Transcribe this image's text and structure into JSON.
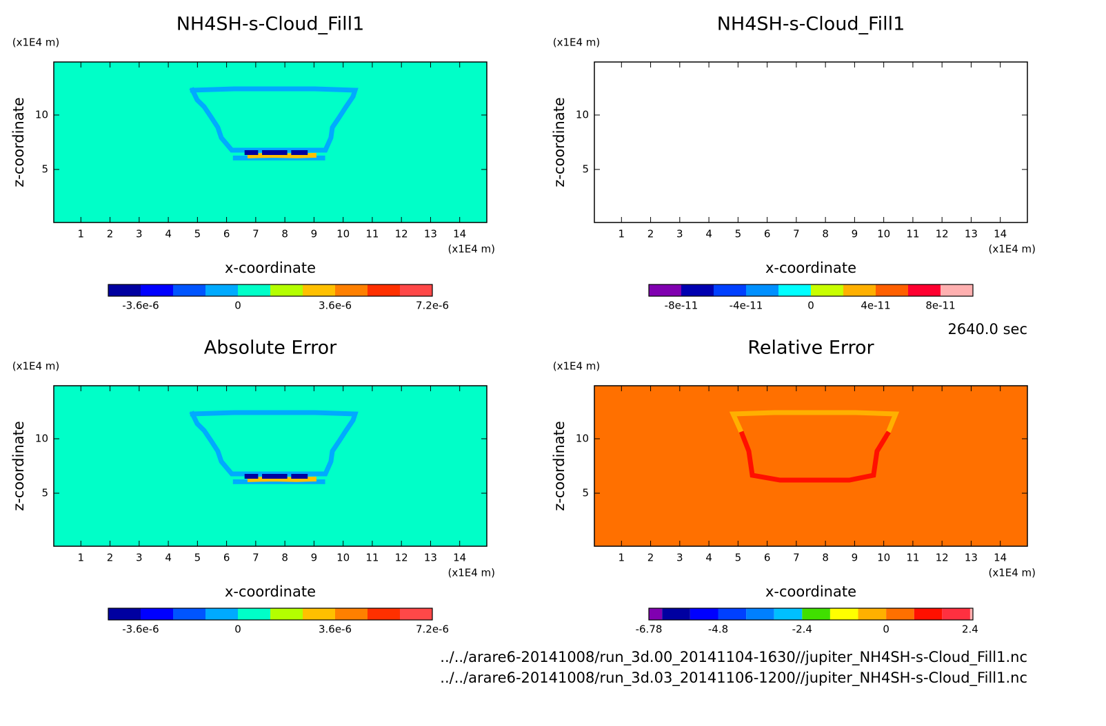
{
  "chart_data": [
    {
      "type": "contour",
      "title": "NH4SH-s-Cloud_Fill1",
      "xlabel": "x-coordinate",
      "ylabel": "z-coordinate",
      "xunit": "(x1E4 m)",
      "yunit": "(x1E4 m)",
      "xlim": [
        0.07,
        14.93
      ],
      "ylim": [
        0.13,
        14.87
      ],
      "xticks": [
        1,
        2,
        3,
        4,
        5,
        6,
        7,
        8,
        9,
        10,
        11,
        12,
        13,
        14
      ],
      "yticks": [
        5,
        10
      ],
      "background": 6e-07,
      "features": [
        {
          "x": [
            4.83,
            6.25,
            9.03,
            10.41,
            10.34,
            10.1,
            9.87,
            9.63,
            9.58,
            9.39,
            6.18,
            5.82,
            5.7,
            5.47,
            5.23,
            4.99,
            4.83
          ],
          "z": [
            12.28,
            12.4,
            12.4,
            12.28,
            11.7,
            10.76,
            9.81,
            8.86,
            7.91,
            6.77,
            6.77,
            7.91,
            8.86,
            9.81,
            10.76,
            11.39,
            12.28
          ],
          "value": -6e-07
        },
        {
          "x": [
            6.3,
            9.3
          ],
          "z": [
            6.05,
            6.05
          ],
          "value": -6e-07
        },
        {
          "x": [
            6.8,
            7.6,
            8.4,
            9.0
          ],
          "z": [
            6.25,
            6.3,
            6.25,
            6.3
          ],
          "value": 3e-06
        },
        {
          "x": [
            6.7,
            7.0
          ],
          "z": [
            6.55,
            6.55
          ],
          "value": -4.2e-06
        },
        {
          "x": [
            7.3,
            8.0
          ],
          "z": [
            6.55,
            6.55
          ],
          "value": -4.2e-06
        },
        {
          "x": [
            8.3,
            8.7
          ],
          "z": [
            6.55,
            6.55
          ],
          "value": -4.2e-06
        }
      ],
      "colorbar": {
        "levels": [
          -4.8e-06,
          -3.6e-06,
          -2.4e-06,
          -1.2e-06,
          0,
          1.2e-06,
          2.4e-06,
          3.6e-06,
          4.8e-06,
          6e-06,
          7.2e-06
        ],
        "colors": [
          "#0000a0",
          "#0000ff",
          "#0055ff",
          "#00aaff",
          "#00ffc8",
          "#b4ff00",
          "#ffc000",
          "#ff8000",
          "#ff3000",
          "#ff4848"
        ],
        "ticks": [
          {
            "value": -3.6e-06,
            "label": "-3.6e-6"
          },
          0,
          {
            "value": 3.6e-06,
            "label": "3.6e-6"
          },
          {
            "value": 7.2e-06,
            "label": "7.2e-6"
          }
        ]
      }
    },
    {
      "type": "contour",
      "title": "NH4SH-s-Cloud_Fill1",
      "xlabel": "x-coordinate",
      "ylabel": "z-coordinate",
      "xunit": "(x1E4 m)",
      "yunit": "(x1E4 m)",
      "xlim": [
        0.07,
        14.93
      ],
      "ylim": [
        0.13,
        14.87
      ],
      "xticks": [
        1,
        2,
        3,
        4,
        5,
        6,
        7,
        8,
        9,
        10,
        11,
        12,
        13,
        14
      ],
      "yticks": [
        5,
        10
      ],
      "background": null,
      "features": [],
      "colorbar": {
        "levels": [
          -1e-10,
          -8e-11,
          -6e-11,
          -4e-11,
          -2e-11,
          0,
          2e-11,
          4e-11,
          6e-11,
          8e-11,
          1e-10
        ],
        "colors": [
          "#8000b0",
          "#0000b0",
          "#0040ff",
          "#0090ff",
          "#00ffff",
          "#c8ff00",
          "#ffb000",
          "#ff6000",
          "#ff0030",
          "#ffb0b0"
        ],
        "ticks": [
          {
            "value": -8e-11,
            "label": "-8e-11"
          },
          {
            "value": -4e-11,
            "label": "-4e-11"
          },
          0,
          {
            "value": 4e-11,
            "label": "4e-11"
          },
          {
            "value": 8e-11,
            "label": "8e-11"
          }
        ]
      }
    },
    {
      "type": "contour",
      "title": "Absolute Error",
      "xlabel": "x-coordinate",
      "ylabel": "z-coordinate",
      "xunit": "(x1E4 m)",
      "yunit": "(x1E4 m)",
      "xlim": [
        0.07,
        14.93
      ],
      "ylim": [
        0.13,
        14.87
      ],
      "xticks": [
        1,
        2,
        3,
        4,
        5,
        6,
        7,
        8,
        9,
        10,
        11,
        12,
        13,
        14
      ],
      "yticks": [
        5,
        10
      ],
      "background": 6e-07,
      "features": [
        {
          "x": [
            4.83,
            6.25,
            9.03,
            10.41,
            10.34,
            10.1,
            9.87,
            9.63,
            9.58,
            9.39,
            6.18,
            5.82,
            5.7,
            5.47,
            5.23,
            4.99,
            4.83
          ],
          "z": [
            12.28,
            12.4,
            12.4,
            12.28,
            11.7,
            10.76,
            9.81,
            8.86,
            7.91,
            6.77,
            6.77,
            7.91,
            8.86,
            9.81,
            10.76,
            11.39,
            12.28
          ],
          "value": -6e-07
        },
        {
          "x": [
            6.3,
            9.3
          ],
          "z": [
            6.05,
            6.05
          ],
          "value": -6e-07
        },
        {
          "x": [
            6.8,
            7.6,
            8.4,
            9.0
          ],
          "z": [
            6.25,
            6.3,
            6.25,
            6.3
          ],
          "value": 3e-06
        },
        {
          "x": [
            6.7,
            7.0
          ],
          "z": [
            6.55,
            6.55
          ],
          "value": -4.2e-06
        },
        {
          "x": [
            7.3,
            8.0
          ],
          "z": [
            6.55,
            6.55
          ],
          "value": -4.2e-06
        },
        {
          "x": [
            8.3,
            8.7
          ],
          "z": [
            6.55,
            6.55
          ],
          "value": -4.2e-06
        }
      ],
      "colorbar": {
        "levels": [
          -4.8e-06,
          -3.6e-06,
          -2.4e-06,
          -1.2e-06,
          0,
          1.2e-06,
          2.4e-06,
          3.6e-06,
          4.8e-06,
          6e-06,
          7.2e-06
        ],
        "colors": [
          "#0000a0",
          "#0000ff",
          "#0055ff",
          "#00aaff",
          "#00ffc8",
          "#b4ff00",
          "#ffc000",
          "#ff8000",
          "#ff3000",
          "#ff4848"
        ],
        "ticks": [
          {
            "value": -3.6e-06,
            "label": "-3.6e-6"
          },
          0,
          {
            "value": 3.6e-06,
            "label": "3.6e-6"
          },
          {
            "value": 7.2e-06,
            "label": "7.2e-6"
          }
        ]
      }
    },
    {
      "type": "contour",
      "title": "Relative Error",
      "xlabel": "x-coordinate",
      "ylabel": "z-coordinate",
      "xunit": "(x1E4 m)",
      "yunit": "(x1E4 m)",
      "xlim": [
        0.07,
        14.93
      ],
      "ylim": [
        0.13,
        14.87
      ],
      "xticks": [
        1,
        2,
        3,
        4,
        5,
        6,
        7,
        8,
        9,
        10,
        11,
        12,
        13,
        14
      ],
      "yticks": [
        5,
        10
      ],
      "background": 0.4,
      "features": [
        {
          "x": [
            5.14,
            4.83,
            6.25,
            9.03,
            10.41,
            10.13
          ],
          "z": [
            10.44,
            12.28,
            12.4,
            12.4,
            12.28,
            10.44
          ],
          "value": -0.4
        },
        {
          "x": [
            5.14,
            5.37,
            5.49,
            6.44,
            8.82,
            9.65,
            9.77,
            10.13
          ],
          "z": [
            10.44,
            8.86,
            6.65,
            6.2,
            6.2,
            6.65,
            8.86,
            10.44
          ],
          "value": 1.2
        }
      ],
      "colorbar": {
        "levels": [
          -6.78,
          -6.4,
          -5.6,
          -4.8,
          -4,
          -3.2,
          -2.4,
          -1.6,
          -0.8,
          0,
          0.8,
          1.6,
          2.4,
          2.48
        ],
        "colors": [
          "#8000b0",
          "#0000a0",
          "#0000ff",
          "#0040ff",
          "#0080ff",
          "#00c0ff",
          "#40e000",
          "#ffff00",
          "#ffb000",
          "#ff7000",
          "#ff1000",
          "#ff3040",
          "#ffb0b0"
        ],
        "ticks": [
          -6.78,
          -4.8,
          -2.4,
          0,
          2.4
        ]
      }
    }
  ],
  "annotations": {
    "time": "2640.0 sec",
    "files": [
      "../../arare6-20141008/run_3d.00_20141104-1630//jupiter_NH4SH-s-Cloud_Fill1.nc",
      "../../arare6-20141008/run_3d.03_20141106-1200//jupiter_NH4SH-s-Cloud_Fill1.nc"
    ]
  }
}
